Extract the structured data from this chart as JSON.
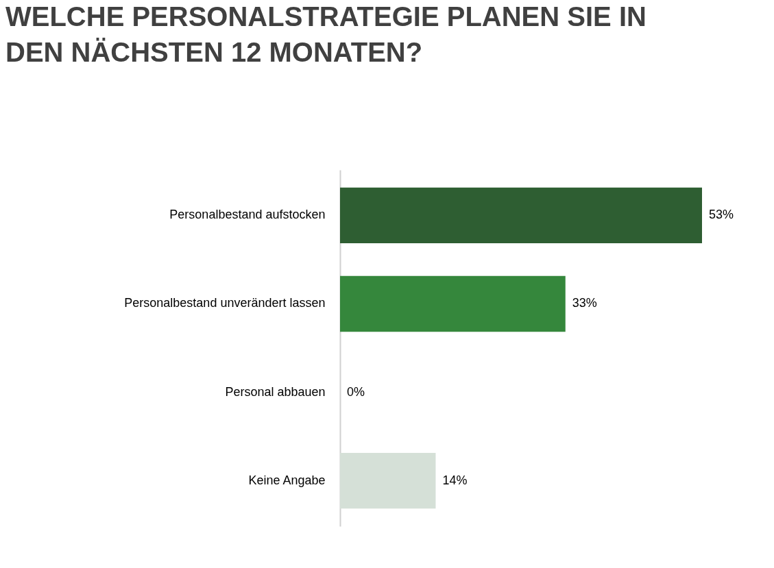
{
  "chart_data": {
    "type": "bar",
    "orientation": "horizontal",
    "title": "WELCHE PERSONALSTRATEGIE PLANEN SIE IN DEN NÄCHSTEN 12 MONATEN?",
    "categories": [
      "Personalbestand aufstocken",
      "Personalbestand unverändert lassen",
      "Personal abbauen",
      "Keine Angabe"
    ],
    "values": [
      53,
      33,
      0,
      14
    ],
    "value_labels": [
      "53%",
      "33%",
      "0%",
      "14%"
    ],
    "colors": [
      "#2e5e32",
      "#35873c",
      "#2e7d32",
      "#d5e0d7"
    ],
    "tick_labels": "y"
  }
}
